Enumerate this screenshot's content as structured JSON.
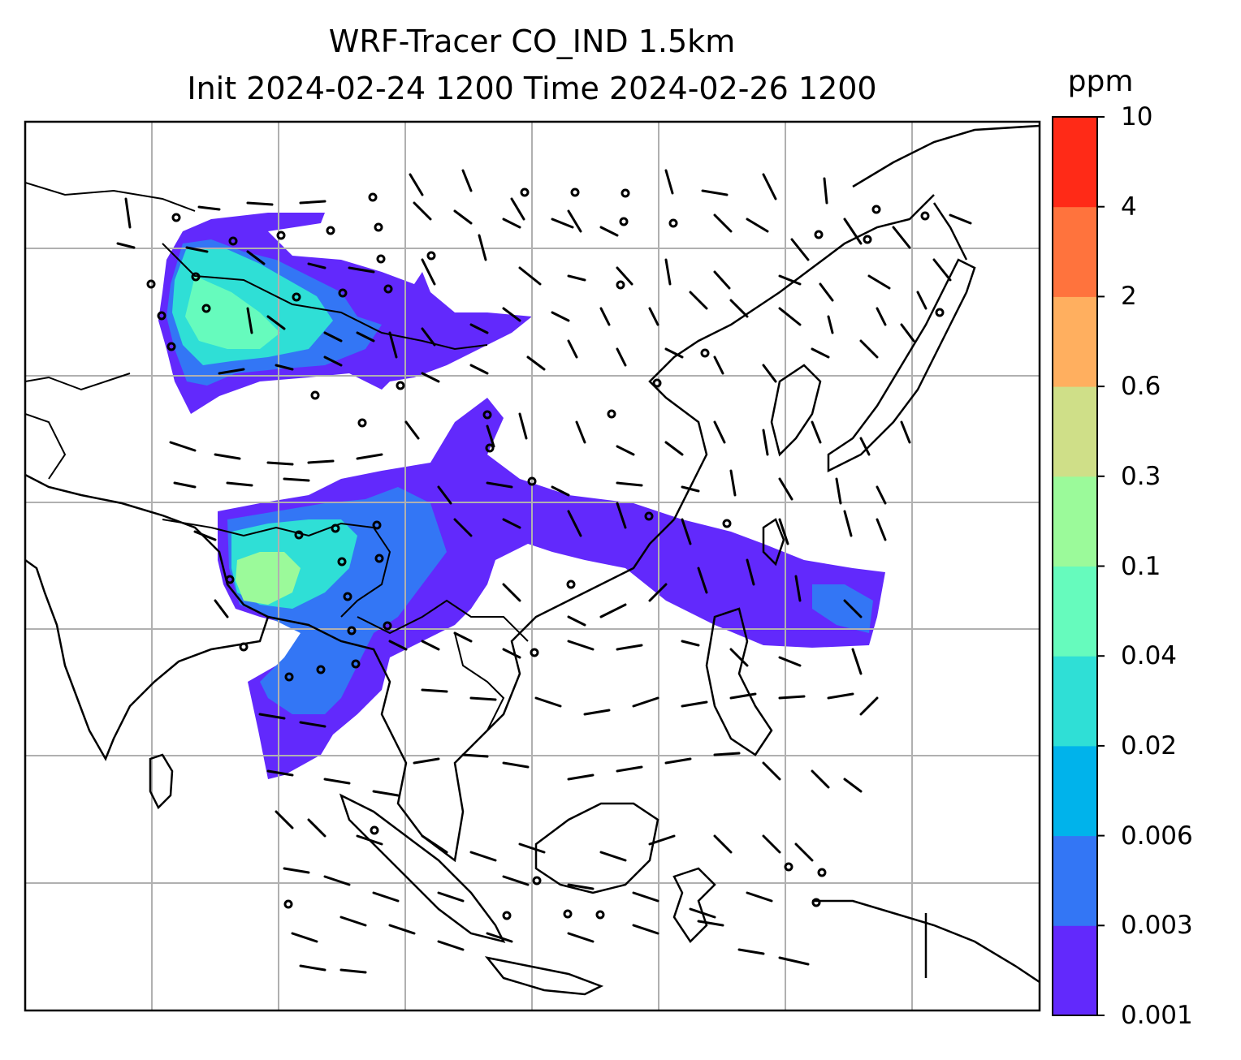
{
  "title": {
    "line1": "WRF-Tracer CO_IND 1.5km",
    "line2": "Init 2024-02-24 1200 Time 2024-02-26 1200"
  },
  "colorbar": {
    "unit": "ppm",
    "levels": [
      "0.001",
      "0.003",
      "0.006",
      "0.02",
      "0.04",
      "0.1",
      "0.3",
      "0.6",
      "2",
      "4",
      "10"
    ],
    "colors": [
      "#6229fc",
      "#3376f5",
      "#00b3eb",
      "#2fdfd6",
      "#66fbbd",
      "#9bfa9a",
      "#cfdf88",
      "#ffaf5f",
      "#ff733d",
      "#ff2a17"
    ]
  },
  "map": {
    "gridlines": true,
    "features": [
      "coastlines",
      "country-borders",
      "wind-barbs",
      "calm-circles",
      "tracer-concentration"
    ]
  }
}
